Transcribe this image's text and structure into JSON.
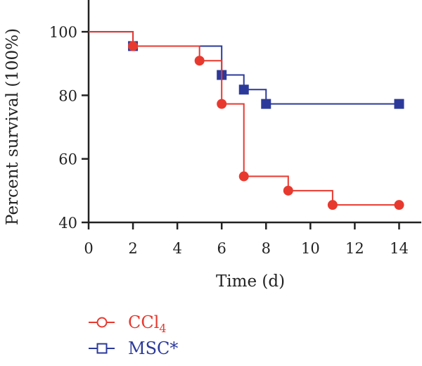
{
  "chart_data": {
    "type": "line",
    "subtype": "step",
    "title": "",
    "xlabel": "Time (d)",
    "ylabel": "Percent survival (100%)",
    "xlim": [
      0,
      15
    ],
    "ylim": [
      40,
      110
    ],
    "xticks": [
      "0",
      "2",
      "4",
      "6",
      "8",
      "10",
      "12",
      "14"
    ],
    "yticks": [
      "40",
      "60",
      "80",
      "100"
    ],
    "grid": false,
    "legend_position": "bottom-left",
    "series": [
      {
        "name": "CCl",
        "name_subscript": "4",
        "color": "#e8392f",
        "marker": "circle",
        "steps": [
          [
            0,
            100
          ],
          [
            2,
            95.5
          ],
          [
            5,
            90.9
          ],
          [
            6,
            77.3
          ],
          [
            7,
            54.5
          ],
          [
            9,
            50.0
          ],
          [
            11,
            45.5
          ],
          [
            14,
            45.5
          ]
        ],
        "points": [
          [
            2,
            95.5
          ],
          [
            5,
            90.9
          ],
          [
            6,
            77.3
          ],
          [
            7,
            54.5
          ],
          [
            9,
            50.0
          ],
          [
            11,
            45.5
          ],
          [
            14,
            45.5
          ]
        ]
      },
      {
        "name": "MSC*",
        "color": "#2b3a9a",
        "marker": "square",
        "steps": [
          [
            0,
            100
          ],
          [
            2,
            95.5
          ],
          [
            6,
            86.4
          ],
          [
            7,
            81.8
          ],
          [
            8,
            77.3
          ],
          [
            14,
            77.3
          ]
        ],
        "points": [
          [
            2,
            95.5
          ],
          [
            6,
            86.4
          ],
          [
            7,
            81.8
          ],
          [
            8,
            77.3
          ],
          [
            14,
            77.3
          ]
        ]
      }
    ]
  }
}
